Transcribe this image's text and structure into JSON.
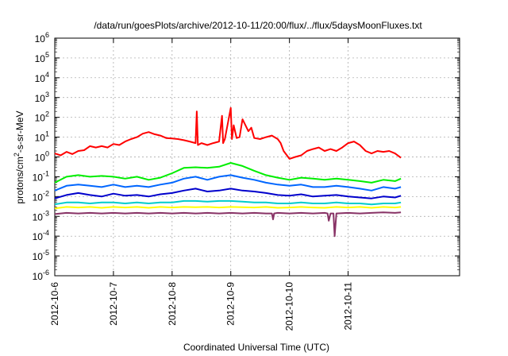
{
  "chart_data": {
    "type": "line",
    "title": "/data/run/goesPlots/archive/2012-10-11/20:00/flux/../flux/5daysMoonFluxes.txt",
    "xlabel": "Coordinated Universal Time (UTC)",
    "ylabel": {
      "base": "protons/cm",
      "sup": "2",
      "rest": "-s-sr-MeV"
    },
    "yscale": "log",
    "ylim": [
      1e-06,
      1000000.0
    ],
    "xlim": [
      0,
      6.9
    ],
    "grid": true,
    "legend": "none",
    "x_ticks": [
      {
        "x": 0,
        "label": "2012-10-6"
      },
      {
        "x": 1,
        "label": "2012-10-7"
      },
      {
        "x": 2,
        "label": "2012-10-8"
      },
      {
        "x": 3,
        "label": "2012-10-9"
      },
      {
        "x": 4,
        "label": "2012-10-10"
      },
      {
        "x": 5,
        "label": "2012-10-11"
      }
    ],
    "y_ticks": [
      {
        "exp": -6,
        "label": "10",
        "sup": "-6"
      },
      {
        "exp": -5,
        "label": "10",
        "sup": "-5"
      },
      {
        "exp": -4,
        "label": "10",
        "sup": "-4"
      },
      {
        "exp": -3,
        "label": "10",
        "sup": "-3"
      },
      {
        "exp": -2,
        "label": "10",
        "sup": "-2"
      },
      {
        "exp": -1,
        "label": "10",
        "sup": "-1"
      },
      {
        "exp": 0,
        "label": "10",
        "sup": "0"
      },
      {
        "exp": 1,
        "label": "10",
        "sup": "1"
      },
      {
        "exp": 2,
        "label": "10",
        "sup": "2"
      },
      {
        "exp": 3,
        "label": "10",
        "sup": "3"
      },
      {
        "exp": 4,
        "label": "10",
        "sup": "4"
      },
      {
        "exp": 5,
        "label": "10",
        "sup": "5"
      },
      {
        "exp": 6,
        "label": "10",
        "sup": "6"
      }
    ],
    "series": [
      {
        "color": "#ff0000",
        "x": [
          0,
          0.1,
          0.2,
          0.3,
          0.4,
          0.5,
          0.6,
          0.7,
          0.8,
          0.9,
          1,
          1.1,
          1.2,
          1.3,
          1.4,
          1.5,
          1.6,
          1.7,
          1.8,
          1.9,
          2,
          2.1,
          2.2,
          2.3,
          2.4,
          2.42,
          2.44,
          2.5,
          2.6,
          2.7,
          2.8,
          2.85,
          2.87,
          2.9,
          3.0,
          3.02,
          3.05,
          3.1,
          3.15,
          3.2,
          3.3,
          3.35,
          3.4,
          3.5,
          3.6,
          3.7,
          3.8,
          3.85,
          3.9,
          4.0,
          4.1,
          4.2,
          4.3,
          4.4,
          4.5,
          4.6,
          4.7,
          4.8,
          4.9,
          5.0,
          5.1,
          5.2,
          5.3,
          5.4,
          5.5,
          5.6,
          5.7,
          5.8,
          5.9
        ],
        "y": [
          1.5,
          1.2,
          1.8,
          1.4,
          2.0,
          2.2,
          3.5,
          3.0,
          3.5,
          3.0,
          4.5,
          4.0,
          6.0,
          8.0,
          10,
          15,
          18,
          14,
          12,
          9,
          8.5,
          8.0,
          7.0,
          6.0,
          5.0,
          200,
          4,
          5,
          4,
          5,
          6,
          120,
          5,
          8,
          300,
          8,
          40,
          9,
          10,
          80,
          20,
          30,
          9,
          8,
          10,
          12,
          8,
          5,
          2.0,
          0.8,
          1.0,
          1.2,
          2.0,
          2.5,
          3.0,
          2.0,
          2.5,
          2.0,
          3.0,
          5.0,
          6.0,
          4.0,
          2.0,
          1.5,
          2.0,
          1.8,
          2.0,
          1.5,
          0.9
        ]
      },
      {
        "color": "#00ee00",
        "x": [
          0,
          0.2,
          0.4,
          0.6,
          0.8,
          1,
          1.2,
          1.4,
          1.6,
          1.8,
          2,
          2.2,
          2.4,
          2.6,
          2.8,
          3,
          3.2,
          3.4,
          3.6,
          3.8,
          4,
          4.2,
          4.4,
          4.6,
          4.8,
          5,
          5.2,
          5.4,
          5.6,
          5.8,
          5.9
        ],
        "y": [
          0.05,
          0.1,
          0.12,
          0.1,
          0.11,
          0.1,
          0.08,
          0.1,
          0.07,
          0.09,
          0.15,
          0.28,
          0.3,
          0.28,
          0.32,
          0.5,
          0.35,
          0.2,
          0.12,
          0.09,
          0.07,
          0.09,
          0.08,
          0.07,
          0.08,
          0.07,
          0.06,
          0.05,
          0.07,
          0.06,
          0.08
        ]
      },
      {
        "color": "#0066ff",
        "x": [
          0,
          0.2,
          0.4,
          0.6,
          0.8,
          1,
          1.2,
          1.4,
          1.6,
          1.8,
          2,
          2.2,
          2.4,
          2.6,
          2.8,
          3,
          3.2,
          3.4,
          3.6,
          3.8,
          4,
          4.2,
          4.4,
          4.6,
          4.8,
          5,
          5.2,
          5.4,
          5.6,
          5.8,
          5.9
        ],
        "y": [
          0.02,
          0.035,
          0.04,
          0.035,
          0.03,
          0.04,
          0.03,
          0.035,
          0.03,
          0.04,
          0.05,
          0.08,
          0.1,
          0.07,
          0.1,
          0.12,
          0.09,
          0.07,
          0.05,
          0.04,
          0.035,
          0.04,
          0.03,
          0.03,
          0.035,
          0.03,
          0.025,
          0.02,
          0.03,
          0.025,
          0.03
        ]
      },
      {
        "color": "#0000cc",
        "x": [
          0,
          0.2,
          0.4,
          0.6,
          0.8,
          1,
          1.2,
          1.4,
          1.6,
          1.8,
          2,
          2.2,
          2.4,
          2.6,
          2.8,
          3,
          3.2,
          3.4,
          3.6,
          3.8,
          4,
          4.2,
          4.4,
          4.6,
          4.8,
          5,
          5.2,
          5.4,
          5.6,
          5.8,
          5.9
        ],
        "y": [
          0.008,
          0.012,
          0.015,
          0.012,
          0.01,
          0.014,
          0.011,
          0.012,
          0.01,
          0.013,
          0.015,
          0.02,
          0.025,
          0.018,
          0.02,
          0.025,
          0.02,
          0.018,
          0.015,
          0.012,
          0.011,
          0.013,
          0.01,
          0.011,
          0.012,
          0.01,
          0.009,
          0.008,
          0.01,
          0.009,
          0.011
        ]
      },
      {
        "color": "#00cccc",
        "x": [
          0,
          0.2,
          0.4,
          0.6,
          0.8,
          1,
          1.2,
          1.4,
          1.6,
          1.8,
          2,
          2.2,
          2.4,
          2.6,
          2.8,
          3,
          3.2,
          3.4,
          3.6,
          3.8,
          4,
          4.2,
          4.4,
          4.6,
          4.8,
          5,
          5.2,
          5.4,
          5.6,
          5.8,
          5.9
        ],
        "y": [
          0.004,
          0.005,
          0.005,
          0.0045,
          0.005,
          0.005,
          0.0045,
          0.005,
          0.0045,
          0.005,
          0.005,
          0.006,
          0.006,
          0.0055,
          0.006,
          0.006,
          0.0055,
          0.005,
          0.005,
          0.0045,
          0.0045,
          0.005,
          0.0045,
          0.0045,
          0.005,
          0.0045,
          0.0045,
          0.004,
          0.0045,
          0.0045,
          0.005
        ]
      },
      {
        "color": "#ffff00",
        "x": [
          0,
          0.2,
          0.4,
          0.6,
          0.8,
          1,
          1.2,
          1.4,
          1.6,
          1.8,
          2,
          2.2,
          2.4,
          2.6,
          2.8,
          3,
          3.2,
          3.4,
          3.6,
          3.8,
          4,
          4.2,
          4.4,
          4.6,
          4.8,
          5,
          5.2,
          5.4,
          5.6,
          5.8,
          5.9
        ],
        "y": [
          0.0025,
          0.003,
          0.0028,
          0.003,
          0.0027,
          0.003,
          0.0028,
          0.003,
          0.0027,
          0.003,
          0.0028,
          0.003,
          0.0029,
          0.003,
          0.0028,
          0.003,
          0.0029,
          0.0028,
          0.003,
          0.0027,
          0.0028,
          0.003,
          0.0028,
          0.0027,
          0.003,
          0.0028,
          0.003,
          0.0027,
          0.003,
          0.0028,
          0.003
        ]
      },
      {
        "color": "#883366",
        "x": [
          0,
          0.2,
          0.4,
          0.6,
          0.8,
          1,
          1.2,
          1.4,
          1.6,
          1.8,
          2,
          2.2,
          2.4,
          2.6,
          2.8,
          3,
          3.2,
          3.4,
          3.6,
          3.7,
          3.72,
          3.74,
          3.8,
          4,
          4.2,
          4.4,
          4.6,
          4.65,
          4.67,
          4.7,
          4.75,
          4.77,
          4.8,
          5,
          5.2,
          5.4,
          5.6,
          5.8,
          5.9
        ],
        "y": [
          0.0013,
          0.0015,
          0.0014,
          0.0015,
          0.0014,
          0.0015,
          0.0014,
          0.0015,
          0.0014,
          0.0015,
          0.0014,
          0.0015,
          0.0014,
          0.0015,
          0.0014,
          0.0015,
          0.0014,
          0.0015,
          0.0014,
          0.0014,
          0.0007,
          0.0014,
          0.0015,
          0.0014,
          0.0015,
          0.0014,
          0.0015,
          0.0014,
          0.0006,
          0.0014,
          0.0014,
          0.0001,
          0.0014,
          0.0015,
          0.0014,
          0.0015,
          0.0016,
          0.0015,
          0.0016
        ]
      }
    ]
  }
}
